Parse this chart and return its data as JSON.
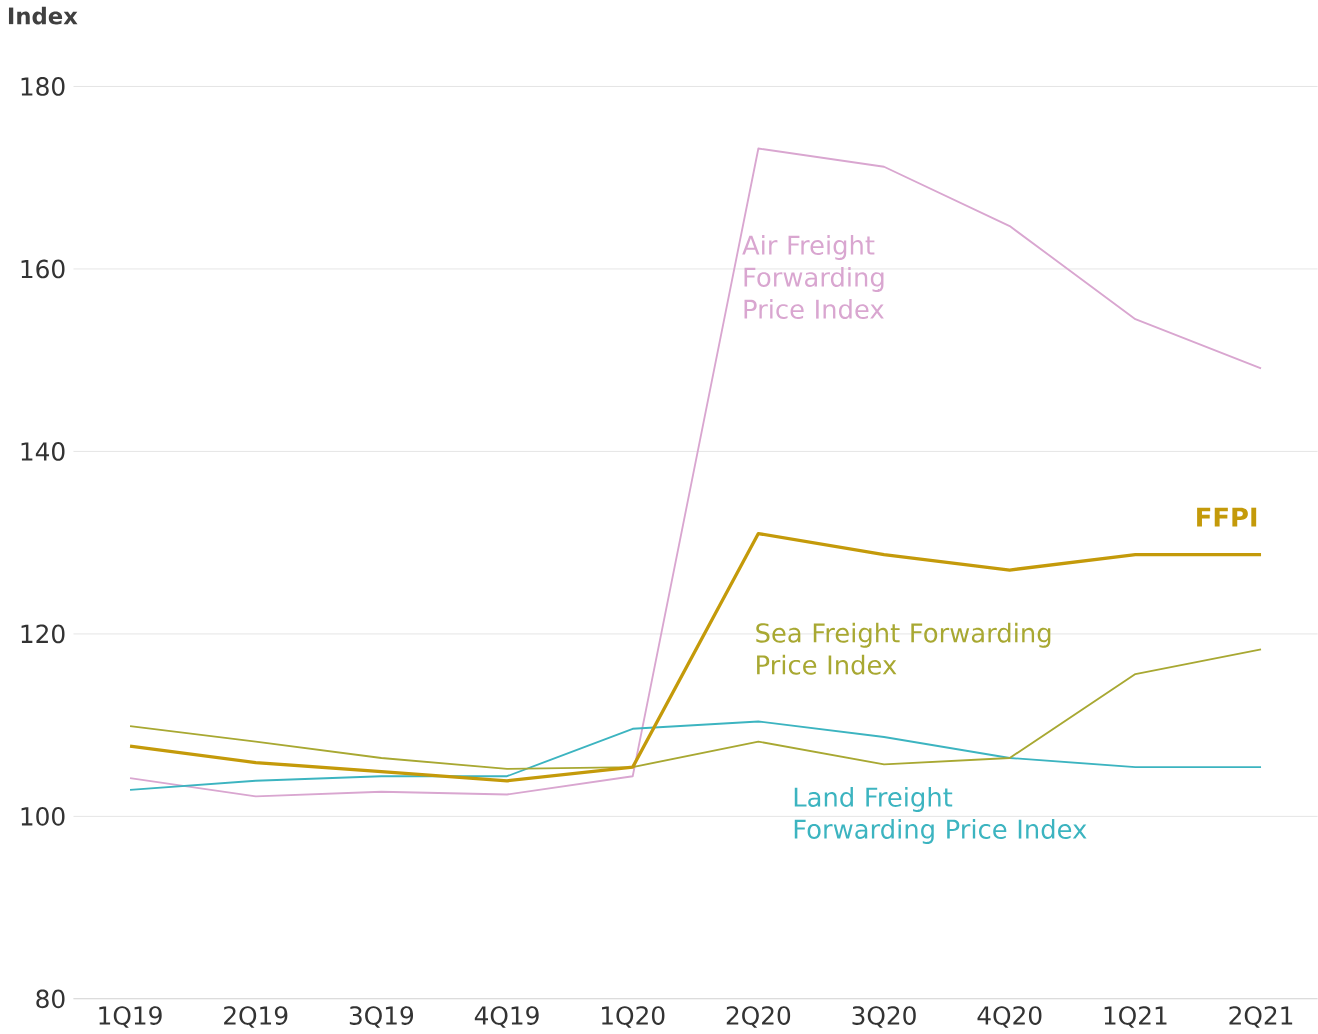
{
  "chart_data": {
    "type": "line",
    "ylabel": "Index",
    "categories": [
      "1Q19",
      "2Q19",
      "3Q19",
      "4Q19",
      "1Q20",
      "2Q20",
      "3Q20",
      "4Q20",
      "1Q21",
      "2Q21"
    ],
    "series": [
      {
        "name": "Air Freight Forwarding Price Index",
        "color": "#d9a6d0",
        "values": [
          104.2,
          102.2,
          102.7,
          102.4,
          104.4,
          173.2,
          171.2,
          164.7,
          154.5,
          149.1
        ]
      },
      {
        "name": "Land Freight Forwarding Price Index",
        "color": "#3cb4c0",
        "values": [
          102.9,
          103.9,
          104.4,
          104.4,
          109.6,
          110.4,
          108.7,
          106.4,
          105.4,
          105.4
        ]
      },
      {
        "name": "Sea Freight Forwarding Price Index",
        "color": "#a8a832",
        "values": [
          109.9,
          108.2,
          106.4,
          105.2,
          105.4,
          108.2,
          105.7,
          106.4,
          115.6,
          118.3
        ]
      },
      {
        "name": "**FFPI**",
        "color": "#c49a0a",
        "values": [
          107.7,
          105.9,
          104.9,
          103.9,
          105.4,
          131.0,
          128.7,
          127.0,
          128.7,
          128.7
        ]
      }
    ],
    "ylim": [
      80,
      180
    ],
    "yticks": [
      80,
      100,
      120,
      140,
      160,
      180
    ],
    "grid": "y",
    "legend": false,
    "marker": "none",
    "line_style": "solid"
  }
}
